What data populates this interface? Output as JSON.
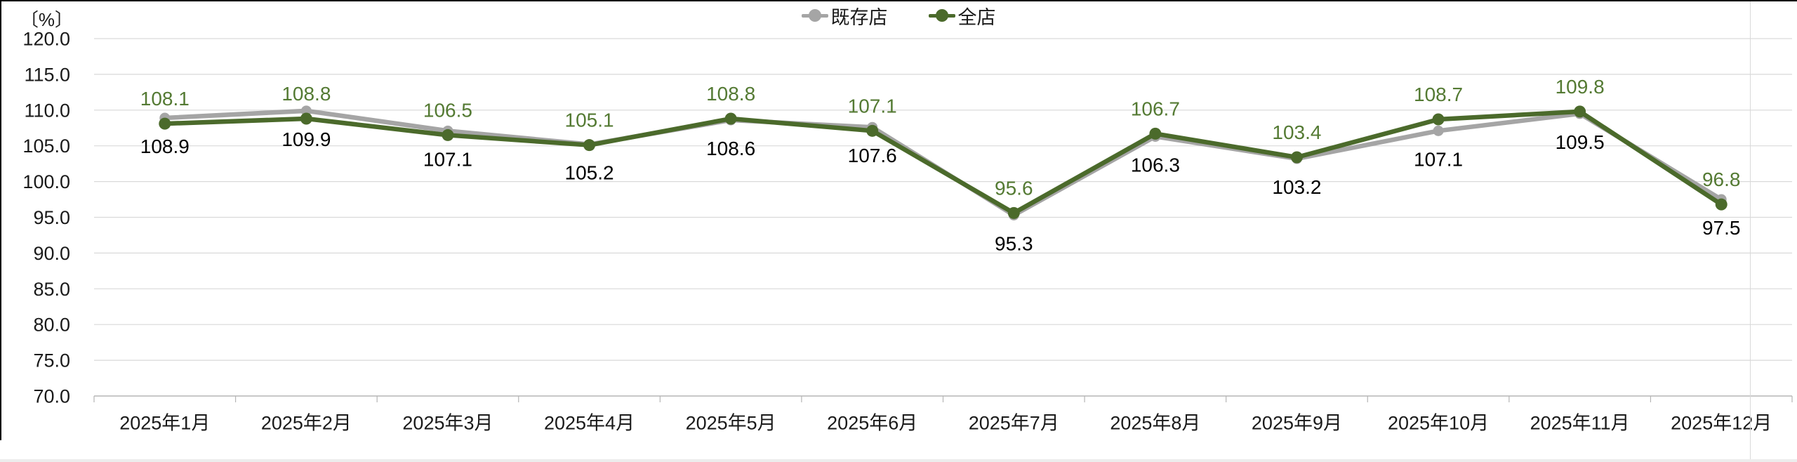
{
  "frame": {
    "top_border_color": "#000000",
    "left_border_color": "#000000",
    "divider_color": "#d9d9d9",
    "bottom_strip_color": "#ededed"
  },
  "chart_data": {
    "type": "line",
    "title": "",
    "unit_label": "〔%〕",
    "legend_position": "top-center",
    "grid": true,
    "grid_color": "#d9d9d9",
    "axis_color": "#b5b5b5",
    "text_color": "#1a1a1a",
    "x_categories": [
      "2025年1月",
      "2025年2月",
      "2025年3月",
      "2025年4月",
      "2025年5月",
      "2025年6月",
      "2025年7月",
      "2025年8月",
      "2025年9月",
      "2025年10月",
      "2025年11月",
      "2025年12月"
    ],
    "y_axis": {
      "min": 70,
      "max": 120,
      "step": 5,
      "tick_labels": [
        "120.0",
        "115.0",
        "110.0",
        "105.0",
        "100.0",
        "95.0",
        "90.0",
        "85.0",
        "80.0",
        "75.0",
        "70.0"
      ]
    },
    "series": [
      {
        "key": "existing-stores",
        "name": "既存店",
        "color": "#a5a5a5",
        "label_color": "#000000",
        "label_position": "below",
        "marker_radius": 7.5,
        "values": [
          108.9,
          109.9,
          107.1,
          105.2,
          108.6,
          107.6,
          95.3,
          106.3,
          103.2,
          107.1,
          109.5,
          97.5
        ]
      },
      {
        "key": "all-stores",
        "name": "全店",
        "color": "#4b6a2b",
        "label_color": "#547a33",
        "label_position": "above",
        "marker_radius": 8.5,
        "values": [
          108.1,
          108.8,
          106.5,
          105.1,
          108.8,
          107.1,
          95.6,
          106.7,
          103.4,
          108.7,
          109.8,
          96.8
        ]
      }
    ]
  }
}
